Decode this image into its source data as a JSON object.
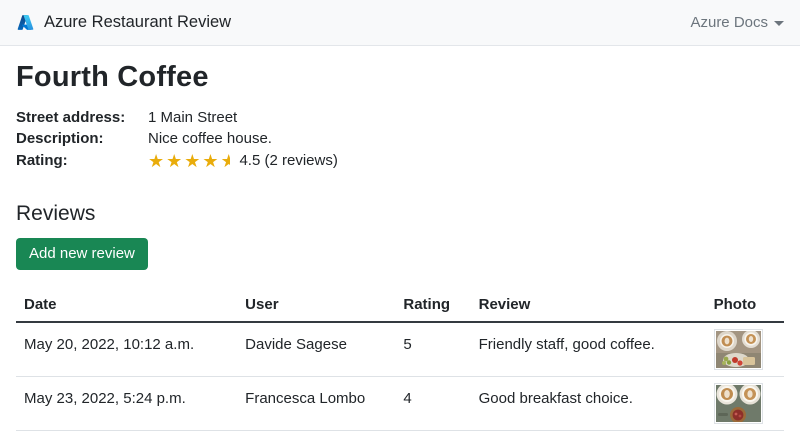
{
  "navbar": {
    "brand": "Azure Restaurant Review",
    "menu_label": "Azure Docs"
  },
  "restaurant": {
    "name": "Fourth Coffee",
    "details": [
      {
        "label": "Street address:",
        "value": "1 Main Street"
      },
      {
        "label": "Description:",
        "value": "Nice coffee house."
      },
      {
        "label": "Rating:",
        "value": "4.5 (2 reviews)"
      }
    ],
    "rating": {
      "full_stars": 4,
      "half_star": true,
      "display_text": "4.5 (2 reviews)"
    }
  },
  "reviews": {
    "heading": "Reviews",
    "add_button_label": "Add new review",
    "table": {
      "headers": [
        "Date",
        "User",
        "Rating",
        "Review",
        "Photo"
      ],
      "rows": [
        {
          "date": "May 20, 2022, 10:12 a.m.",
          "user": "Davide Sagese",
          "rating": "5",
          "review": "Friendly staff, good coffee.",
          "photo": "latte-cups-with-strawberries"
        },
        {
          "date": "May 23, 2022, 5:24 p.m.",
          "user": "Francesca Lombo",
          "rating": "4",
          "review": "Good breakfast choice.",
          "photo": "latte-cups-with-tart"
        }
      ]
    }
  },
  "colors": {
    "star_gold": "#e9ac0b",
    "button_green": "#198754",
    "navbar_bg": "#f8f9fa",
    "muted_text": "#6c757d",
    "text": "#212529"
  }
}
